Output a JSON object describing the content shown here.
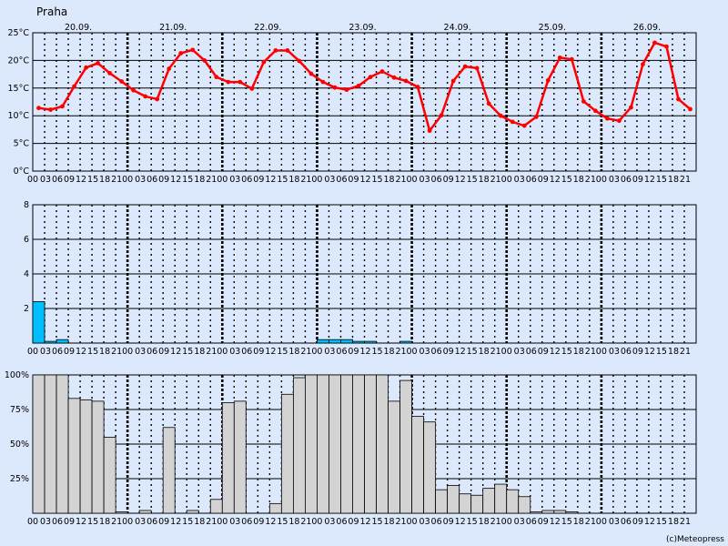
{
  "location": "Praha",
  "credit": "(c)Meteopress",
  "date_labels": [
    "20.09.",
    "21.09.",
    "22.09.",
    "23.09.",
    "24.09.",
    "25.09.",
    "26.09."
  ],
  "hour_labels": [
    "00",
    "03",
    "06",
    "09",
    "12",
    "15",
    "18",
    "21"
  ],
  "colors": {
    "background": "#dce8fc",
    "temperature": "#ff0000",
    "precipitation": "#00bfff",
    "cloud": "#d3d3d3"
  },
  "chart_data": [
    {
      "type": "line",
      "panel": "temperature",
      "x_unit": "3-hour steps from 20.09. 00:00",
      "y_ticks": [
        "0°C",
        "5°C",
        "10°C",
        "15°C",
        "20°C",
        "25°C"
      ],
      "ylim": [
        0,
        25
      ],
      "grid": true,
      "series": [
        {
          "values": [
            11.4,
            11.1,
            11.7,
            15.3,
            18.7,
            19.5,
            17.7,
            16.2,
            14.6,
            13.5,
            13.0,
            18.5,
            21.3,
            21.9,
            20.0,
            17.0,
            16.1,
            16.1,
            14.9,
            19.7,
            21.8,
            21.8,
            19.9,
            17.6,
            16.1,
            15.1,
            14.7,
            15.4,
            17.0,
            18.0,
            16.9,
            16.3,
            15.2,
            7.3,
            10.1,
            16.3,
            18.9,
            18.6,
            12.2,
            10.0,
            8.9,
            8.2,
            9.8,
            16.4,
            20.5,
            20.2,
            12.6,
            10.9,
            9.5,
            9.1,
            11.5,
            19.3,
            23.2,
            22.5,
            13.0,
            11.2
          ]
        }
      ]
    },
    {
      "type": "bar",
      "panel": "precipitation",
      "y_ticks": [
        "2",
        "4",
        "6",
        "8"
      ],
      "ylim": [
        0,
        8
      ],
      "grid": true,
      "values": [
        2.4,
        0.1,
        0.2,
        0,
        0,
        0,
        0,
        0,
        0,
        0,
        0,
        0,
        0,
        0,
        0,
        0,
        0,
        0,
        0,
        0,
        0,
        0,
        0,
        0,
        0.2,
        0.2,
        0.2,
        0.1,
        0.1,
        0,
        0,
        0.1,
        0,
        0,
        0,
        0,
        0,
        0,
        0,
        0,
        0,
        0,
        0,
        0,
        0,
        0,
        0,
        0,
        0,
        0,
        0,
        0,
        0,
        0,
        0,
        0
      ]
    },
    {
      "type": "bar",
      "panel": "cloud cover",
      "y_ticks": [
        "25%",
        "50%",
        "75%",
        "100%"
      ],
      "ylim": [
        0,
        100
      ],
      "grid": true,
      "values": [
        100,
        100,
        100,
        83,
        82,
        81,
        55,
        1,
        0,
        2,
        0,
        62,
        0,
        2,
        0,
        10,
        80,
        81,
        0,
        0,
        7,
        86,
        98,
        100,
        100,
        100,
        100,
        100,
        100,
        100,
        81,
        96,
        70,
        66,
        17,
        20,
        14,
        13,
        18,
        21,
        17,
        12,
        1,
        2,
        2,
        1,
        0,
        0,
        0,
        0,
        0,
        0,
        0,
        0,
        0,
        0
      ]
    }
  ]
}
